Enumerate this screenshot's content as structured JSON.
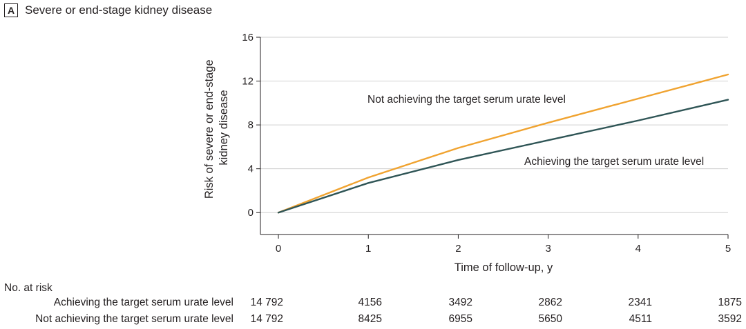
{
  "panel": {
    "letter": "A",
    "title": "Severe or end-stage kidney disease"
  },
  "chart_data": {
    "type": "line",
    "title": "Severe or end-stage kidney disease",
    "xlabel": "Time of follow-up, y",
    "ylabel_lines": [
      "Risk of severe or end-stage",
      "kidney disease"
    ],
    "x": [
      0,
      1,
      2,
      3,
      4,
      5
    ],
    "xlim": [
      -0.2,
      5
    ],
    "ylim": [
      -2,
      16
    ],
    "xticks": [
      0,
      1,
      2,
      3,
      4,
      5
    ],
    "yticks": [
      0,
      4,
      8,
      12,
      16
    ],
    "grid": "horizontal",
    "series": [
      {
        "name": "Not achieving the target serum urate level",
        "color": "#f0a330",
        "values": [
          0,
          3.2,
          5.9,
          8.2,
          10.4,
          12.6
        ]
      },
      {
        "name": "Achieving the target serum urate level",
        "color": "#2f5556",
        "values": [
          0,
          2.7,
          4.8,
          6.6,
          8.4,
          10.3
        ]
      }
    ]
  },
  "risk_table": {
    "heading": "No. at risk",
    "rows": [
      {
        "label": "Achieving the target serum urate level",
        "values": [
          "14 792",
          "4156",
          "3492",
          "2862",
          "2341",
          "1875"
        ]
      },
      {
        "label": "Not achieving the target serum urate level",
        "values": [
          "14 792",
          "8425",
          "6955",
          "5650",
          "4511",
          "3592"
        ]
      }
    ]
  }
}
